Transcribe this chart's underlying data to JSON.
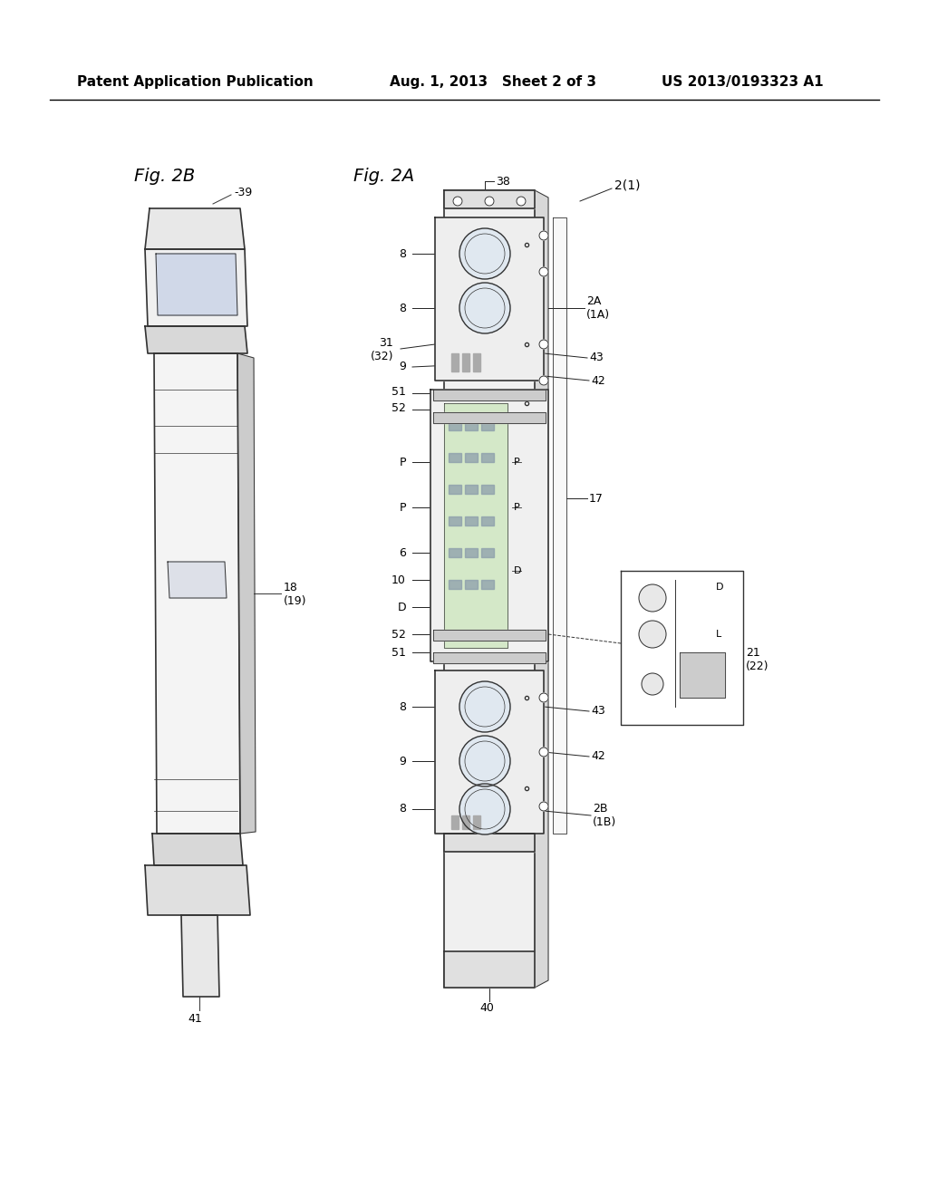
{
  "bg_color": "#ffffff",
  "header_left": "Patent Application Publication",
  "header_center": "Aug. 1, 2013   Sheet 2 of 3",
  "header_right": "US 2013/0193323 A1",
  "fig2b_label": "Fig. 2B",
  "fig2a_label": "Fig. 2A",
  "header_font_size": 11,
  "fig_label_font_size": 14,
  "annotation_font_size": 9
}
